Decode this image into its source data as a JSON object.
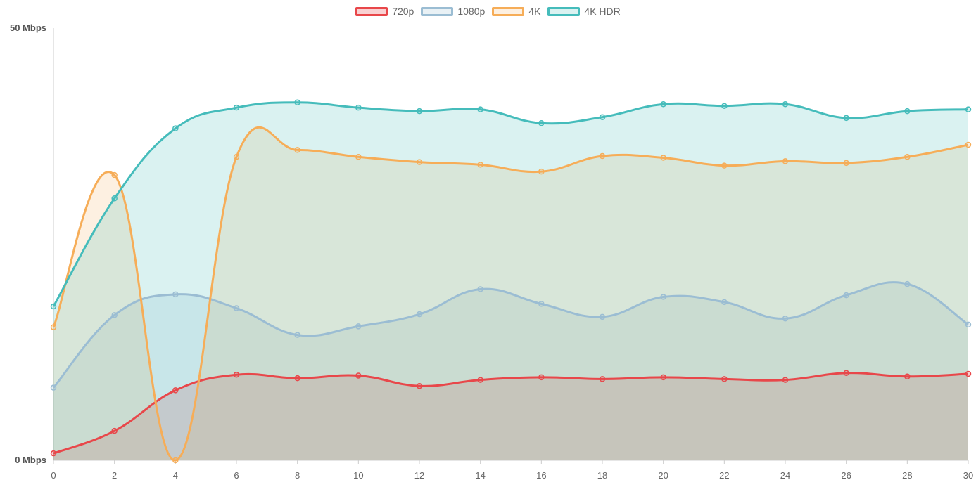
{
  "chart_data": {
    "type": "area",
    "x": [
      0,
      2,
      4,
      6,
      8,
      10,
      12,
      14,
      16,
      18,
      20,
      22,
      24,
      26,
      28,
      30
    ],
    "xlim": [
      0,
      30
    ],
    "ylim": [
      0,
      50
    ],
    "x_ticks": [
      "0",
      "2",
      "4",
      "6",
      "8",
      "10",
      "12",
      "14",
      "16",
      "18",
      "20",
      "22",
      "24",
      "26",
      "28",
      "30"
    ],
    "y_ticks": [
      {
        "value": 0,
        "label": "0 Mbps"
      },
      {
        "value": 50,
        "label": "50 Mbps"
      }
    ],
    "legend_position": "top",
    "grid": false,
    "series": [
      {
        "name": "720p",
        "color": "#e8474a",
        "fill": "rgba(232,71,74,0.25)",
        "values": [
          0.8,
          3.4,
          8.1,
          9.9,
          9.5,
          9.8,
          8.6,
          9.3,
          9.6,
          9.4,
          9.6,
          9.4,
          9.3,
          10.1,
          9.7,
          10.0
        ]
      },
      {
        "name": "1080p",
        "color": "#9bbdd3",
        "fill": "rgba(155,189,211,0.22)",
        "values": [
          8.4,
          16.8,
          19.2,
          17.6,
          14.5,
          15.5,
          16.9,
          19.8,
          18.1,
          16.6,
          18.9,
          18.3,
          16.4,
          19.1,
          20.4,
          15.7
        ]
      },
      {
        "name": "4K",
        "color": "#f6ad58",
        "fill": "rgba(246,173,88,0.18)",
        "values": [
          15.4,
          33.0,
          0.0,
          35.1,
          35.9,
          35.1,
          34.5,
          34.2,
          33.4,
          35.2,
          35.0,
          34.1,
          34.6,
          34.4,
          35.1,
          36.5
        ]
      },
      {
        "name": "4K HDR",
        "color": "#45bcbb",
        "fill": "rgba(69,188,187,0.2)",
        "values": [
          17.8,
          30.3,
          38.4,
          40.8,
          41.4,
          40.8,
          40.4,
          40.6,
          39.0,
          39.7,
          41.2,
          41.0,
          41.2,
          39.6,
          40.4,
          40.6
        ]
      }
    ]
  }
}
